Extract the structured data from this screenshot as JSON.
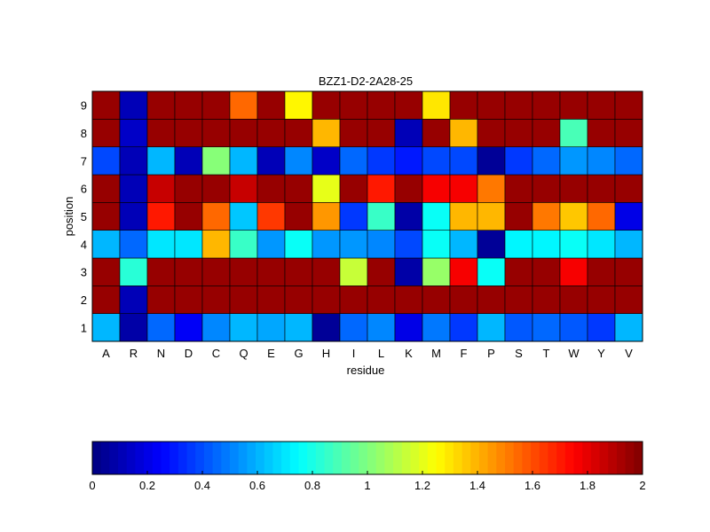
{
  "chart_data": {
    "type": "heatmap",
    "title": "BZZ1-D2-2A28-25",
    "xlabel": "residue",
    "ylabel": "position",
    "x_categories": [
      "A",
      "R",
      "N",
      "D",
      "C",
      "Q",
      "E",
      "G",
      "H",
      "I",
      "L",
      "K",
      "M",
      "F",
      "P",
      "S",
      "T",
      "W",
      "Y",
      "V"
    ],
    "y_categories": [
      "1",
      "2",
      "3",
      "4",
      "5",
      "6",
      "7",
      "8",
      "9"
    ],
    "values": [
      [
        0.62,
        0.08,
        0.45,
        0.22,
        0.5,
        0.62,
        0.58,
        0.6,
        0.05,
        0.45,
        0.5,
        0.2,
        0.48,
        0.35,
        0.62,
        0.42,
        0.45,
        0.42,
        0.35,
        0.6
      ],
      [
        1.95,
        0.1,
        1.95,
        1.95,
        1.95,
        1.95,
        1.95,
        1.95,
        1.95,
        1.95,
        1.95,
        1.95,
        1.95,
        1.95,
        1.95,
        1.95,
        1.95,
        1.95,
        1.95,
        1.95
      ],
      [
        1.95,
        0.82,
        1.95,
        1.95,
        1.95,
        1.95,
        1.95,
        1.95,
        1.95,
        1.15,
        1.95,
        0.08,
        1.05,
        1.75,
        0.75,
        1.95,
        1.95,
        1.75,
        1.95,
        1.95
      ],
      [
        0.62,
        0.45,
        0.7,
        0.7,
        1.38,
        0.85,
        0.55,
        0.75,
        0.55,
        0.55,
        0.5,
        0.4,
        0.78,
        0.6,
        0.05,
        0.72,
        0.72,
        0.75,
        0.7,
        0.62
      ],
      [
        1.95,
        0.1,
        1.7,
        1.95,
        1.55,
        0.65,
        1.65,
        1.95,
        1.45,
        0.35,
        0.85,
        0.08,
        0.75,
        1.38,
        1.38,
        1.95,
        1.5,
        1.35,
        1.55,
        0.2
      ],
      [
        1.95,
        0.1,
        1.85,
        1.95,
        1.95,
        1.85,
        1.95,
        1.95,
        1.2,
        1.95,
        1.7,
        1.95,
        1.75,
        1.75,
        1.5,
        1.95,
        1.95,
        1.95,
        1.95,
        1.95
      ],
      [
        0.4,
        0.1,
        0.6,
        0.1,
        1.0,
        0.6,
        0.1,
        0.5,
        0.15,
        0.45,
        0.35,
        0.3,
        0.4,
        0.4,
        0.05,
        0.35,
        0.45,
        0.55,
        0.5,
        0.45
      ],
      [
        1.95,
        0.15,
        1.95,
        1.95,
        1.95,
        1.95,
        1.95,
        1.95,
        1.4,
        1.95,
        1.95,
        0.1,
        1.95,
        1.4,
        1.95,
        1.95,
        1.95,
        0.9,
        1.95,
        1.95
      ],
      [
        1.95,
        0.1,
        1.95,
        1.95,
        1.95,
        1.55,
        1.95,
        1.28,
        1.95,
        1.95,
        1.95,
        1.95,
        1.3,
        1.95,
        1.95,
        1.95,
        1.95,
        1.95,
        1.95,
        1.95
      ]
    ],
    "colorbar": {
      "min": 0,
      "max": 2,
      "ticks": [
        "0",
        "0.2",
        "0.4",
        "0.6",
        "0.8",
        "1",
        "1.2",
        "1.4",
        "1.6",
        "1.8",
        "2"
      ]
    },
    "colormap": "jet"
  }
}
